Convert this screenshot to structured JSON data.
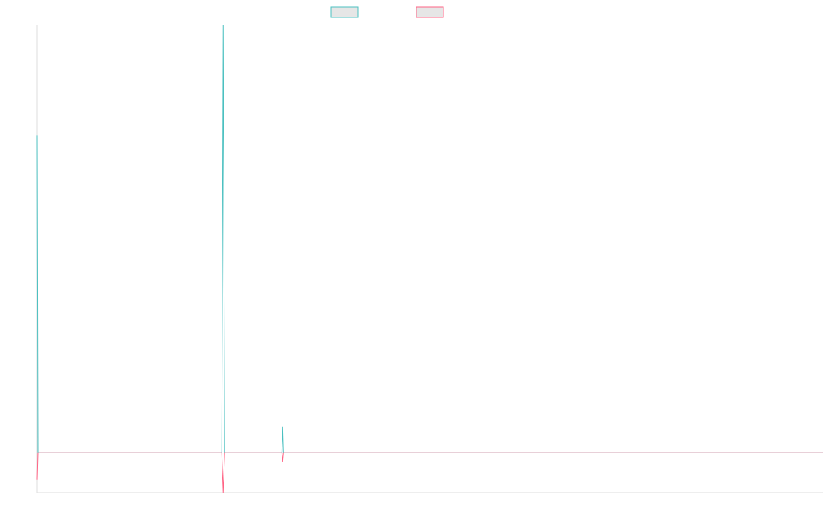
{
  "chart_data": {
    "type": "line",
    "title": "",
    "xlabel": "",
    "ylabel": "",
    "grid": false,
    "legend_position": "top-center",
    "x": [
      0,
      1,
      2,
      3,
      4,
      5,
      6,
      7,
      8,
      9,
      10,
      11,
      12,
      13,
      14,
      15,
      16,
      17,
      18,
      19,
      20,
      21,
      22,
      23,
      24,
      25,
      26,
      27,
      28,
      29,
      30,
      31,
      32,
      33,
      34,
      35,
      36,
      37,
      38,
      39,
      40,
      41,
      42,
      43,
      44,
      45,
      46,
      47,
      48,
      49,
      50,
      51,
      52,
      53,
      54,
      55,
      56,
      57,
      58,
      59,
      60,
      61,
      62,
      63,
      64,
      65,
      66,
      67,
      68,
      69,
      70,
      71,
      72,
      73,
      74,
      75,
      76,
      77,
      78,
      79,
      80,
      81,
      82,
      83,
      84,
      85,
      86,
      87,
      88,
      89,
      90,
      91,
      92,
      93,
      94,
      95,
      96,
      97,
      98,
      99,
      100,
      101,
      102,
      103,
      104,
      105,
      106,
      107,
      108,
      109,
      110,
      111,
      112,
      113,
      114,
      115,
      116,
      117,
      118,
      119,
      120,
      121,
      122,
      123,
      124,
      125,
      126,
      127,
      128,
      129,
      130,
      131,
      132,
      133,
      134,
      135,
      136,
      137,
      138,
      139,
      140,
      141,
      142,
      143,
      144,
      145,
      146,
      147,
      148,
      149,
      150,
      151,
      152,
      153,
      154,
      155,
      156,
      157,
      158,
      159,
      160,
      161,
      162,
      163,
      164,
      165,
      166,
      167,
      168,
      169,
      170,
      171,
      172,
      173,
      174,
      175,
      176,
      177,
      178,
      179,
      180,
      181,
      182,
      183,
      184,
      185,
      186,
      187,
      188,
      189,
      190,
      191,
      192,
      193,
      194,
      195,
      196,
      197,
      198,
      199,
      200,
      201,
      202,
      203,
      204,
      205,
      206,
      207,
      208,
      209,
      210,
      211,
      212,
      213,
      214,
      215,
      216,
      217,
      218,
      219,
      220,
      221,
      222,
      223,
      224,
      225,
      226,
      227,
      228,
      229,
      230,
      231,
      232,
      233,
      234,
      235,
      236,
      237,
      238,
      239,
      240,
      241,
      242,
      243,
      244,
      245,
      246,
      247,
      248,
      249,
      250,
      251,
      252,
      253,
      254,
      255,
      256,
      257,
      258,
      259,
      260,
      261,
      262,
      263,
      264,
      265,
      266,
      267,
      268,
      269,
      270,
      271,
      272,
      273,
      274,
      275,
      276,
      277,
      278,
      279,
      280,
      281,
      282,
      283,
      284,
      285,
      286,
      287,
      288,
      289,
      290,
      291,
      292,
      293,
      294,
      295,
      296,
      297,
      298,
      299,
      300,
      301,
      302,
      303,
      304,
      305,
      306,
      307,
      308,
      309,
      310,
      311,
      312,
      313,
      314,
      315,
      316,
      317,
      318,
      319,
      320,
      321,
      322,
      323,
      324,
      325,
      326,
      327,
      328,
      329,
      330,
      331,
      332,
      333,
      334,
      335,
      336,
      337,
      338,
      339,
      340,
      341,
      342,
      343,
      344,
      345,
      346,
      347,
      348,
      349,
      350,
      351,
      352,
      353,
      354,
      355,
      356,
      357,
      358,
      359,
      360,
      361,
      362,
      363,
      364,
      365,
      366,
      367,
      368,
      369,
      370,
      371,
      372,
      373,
      374,
      375,
      376,
      377,
      378,
      379,
      380,
      381,
      382,
      383,
      384,
      385,
      386,
      387,
      388,
      389,
      390,
      391,
      392,
      393,
      394,
      395,
      396,
      397,
      398,
      399,
      400,
      401,
      402,
      403,
      404,
      405,
      406,
      407,
      408,
      409,
      410,
      411,
      412,
      413,
      414,
      415,
      416,
      417,
      418,
      419,
      420,
      421,
      422,
      423,
      424,
      425,
      426,
      427,
      428,
      429,
      430,
      431,
      432,
      433,
      434,
      435,
      436,
      437,
      438,
      439,
      440,
      441,
      442,
      443,
      444,
      445,
      446,
      447,
      448,
      449,
      450,
      451,
      452,
      453,
      454,
      455,
      456,
      457,
      458,
      459,
      460,
      461,
      462,
      463,
      464,
      465,
      466,
      467,
      468,
      469,
      470,
      471,
      472,
      473,
      474,
      475,
      476,
      477,
      478,
      479,
      480,
      481,
      482,
      483,
      484,
      485,
      486,
      487,
      488,
      489,
      490,
      491,
      492,
      493,
      494,
      495,
      496,
      497,
      498,
      499,
      500,
      501,
      502,
      503,
      504,
      505,
      506,
      507,
      508,
      509,
      510,
      511,
      512,
      513,
      514,
      515,
      516,
      517,
      518,
      519,
      520,
      521,
      522,
      523,
      524,
      525,
      526,
      527,
      528,
      529,
      530,
      531,
      532,
      533,
      534,
      535,
      536,
      537,
      538,
      539,
      540,
      541,
      542,
      543,
      544,
      545,
      546,
      547,
      548,
      549,
      550,
      551,
      552,
      553,
      554,
      555,
      556,
      557,
      558,
      559,
      560,
      561,
      562,
      563,
      564,
      565,
      566,
      567,
      568,
      569,
      570,
      571,
      572,
      573,
      574,
      575,
      576,
      577,
      578,
      579,
      580,
      581,
      582,
      583,
      584,
      585,
      586,
      587,
      588,
      589,
      590,
      591,
      592,
      593,
      594,
      595,
      596,
      597,
      598,
      599,
      600,
      601,
      602,
      603,
      604,
      605,
      606,
      607,
      608,
      609,
      610,
      611,
      612,
      613,
      614,
      615,
      616,
      617,
      618,
      619,
      620,
      621,
      622,
      623,
      624,
      625,
      626,
      627,
      628,
      629,
      630,
      631,
      632,
      633,
      634,
      635,
      636,
      637,
      638,
      639,
      640,
      641,
      642,
      643,
      644,
      645,
      646,
      647,
      648,
      649,
      650,
      651,
      652,
      653,
      654,
      655,
      656,
      657,
      658,
      659,
      660,
      661,
      662,
      663,
      664,
      665,
      666,
      667,
      668,
      669,
      670,
      671,
      672,
      673,
      674,
      675,
      676,
      677,
      678,
      679,
      680,
      681,
      682,
      683,
      684,
      685,
      686,
      687,
      688,
      689,
      690,
      691,
      692,
      693,
      694,
      695,
      696,
      697,
      698,
      699,
      700,
      701,
      702,
      703,
      704,
      705,
      706,
      707,
      708,
      709,
      710,
      711,
      712,
      713,
      714,
      715,
      716,
      717,
      718,
      719,
      720,
      721,
      722,
      723,
      724,
      725,
      726,
      727,
      728,
      729,
      730,
      731,
      732,
      733,
      734,
      735,
      736,
      737,
      738,
      739,
      740,
      741,
      742,
      743,
      744,
      745,
      746,
      747,
      748,
      749,
      750,
      751,
      752,
      753,
      754,
      755,
      756,
      757,
      758,
      759,
      760,
      761,
      762,
      763,
      764,
      765,
      766,
      767,
      768,
      769,
      770,
      771,
      772,
      773,
      774,
      775,
      776,
      777,
      778,
      779,
      780,
      781,
      782,
      783,
      784,
      785,
      786,
      787,
      788,
      789,
      790,
      791,
      792,
      793,
      794,
      795,
      796,
      797,
      798,
      799,
      800,
      801,
      802,
      803,
      804,
      805,
      806,
      807,
      808,
      809,
      810,
      811,
      812,
      813,
      814,
      815,
      816,
      817,
      818,
      819,
      820,
      821,
      822,
      823,
      824,
      825,
      826,
      827,
      828,
      829,
      830,
      831,
      832,
      833,
      834,
      835,
      836,
      837,
      838,
      839,
      840,
      841,
      842,
      843,
      844,
      845,
      846,
      847,
      848,
      849,
      850,
      851,
      852,
      853,
      854,
      855,
      856,
      857,
      858,
      859,
      860,
      861,
      862,
      863,
      864,
      865,
      866,
      867,
      868,
      869,
      870,
      871,
      872,
      873,
      874,
      875,
      876,
      877,
      878,
      879,
      880,
      881,
      882,
      883,
      884,
      885,
      886,
      887,
      888,
      889,
      890,
      891,
      892,
      893,
      894,
      895,
      896,
      897,
      898,
      899,
      900,
      901,
      902,
      903,
      904,
      905,
      906,
      907,
      908,
      909,
      910,
      911,
      912,
      913,
      914,
      915,
      916,
      917,
      918,
      919,
      920,
      921,
      922,
      923,
      924,
      925,
      926,
      927,
      928,
      929,
      930,
      931,
      932,
      933,
      934,
      935,
      936,
      937,
      938,
      939,
      940,
      941,
      942,
      943,
      944,
      945,
      946,
      947,
      948,
      949,
      950,
      951,
      952,
      953,
      954,
      955,
      956,
      957,
      958,
      959,
      960,
      961,
      962,
      963,
      964,
      965,
      966,
      967,
      968,
      969,
      970,
      971,
      972,
      973,
      974,
      975,
      976,
      977,
      978,
      979,
      980,
      981,
      982,
      983,
      984,
      985,
      986,
      987,
      988,
      989,
      990,
      991,
      992,
      993,
      994,
      995,
      996,
      997,
      998,
      999,
      1000,
      1001,
      1002,
      1003,
      1004,
      1005,
      1006,
      1007,
      1008,
      1009,
      1010,
      1011,
      1012,
      1013,
      1014,
      1015,
      1016,
      1017,
      1018,
      1019,
      1020,
      1021,
      1022,
      1023,
      1024,
      1025,
      1026,
      1027,
      1028,
      1029,
      1030,
      1031,
      1032,
      1033,
      1034,
      1035,
      1036,
      1037,
      1038,
      1039,
      1040,
      1041,
      1042,
      1043,
      1044,
      1045,
      1046,
      1047,
      1048,
      1049,
      1050,
      1051,
      1052,
      1053,
      1054,
      1055,
      1056,
      1057,
      1058,
      1059,
      1060,
      1061,
      1062,
      1063,
      1064,
      1065,
      1066,
      1067,
      1068,
      1069,
      1070,
      1071,
      1072,
      1073,
      1074,
      1075,
      1076,
      1077,
      1078,
      1079,
      1080,
      1081,
      1082,
      1083,
      1084,
      1085,
      1086,
      1087,
      1088,
      1089,
      1090,
      1091,
      1092,
      1093,
      1094,
      1095,
      1096,
      1097,
      1098,
      1099,
      1100,
      1101,
      1102,
      1103,
      1104,
      1105,
      1106,
      1107,
      1108,
      1109,
      1110,
      1111,
      1112,
      1113,
      1114,
      1115,
      1116,
      1117,
      1118,
      1119,
      1120,
      1121,
      1122,
      1123,
      1124,
      1125,
      1126,
      1127,
      1128,
      1129,
      1130,
      1131,
      1132,
      1133,
      1134,
      1135,
      1136,
      1137,
      1138,
      1139,
      1140
    ],
    "series": [
      {
        "color": "#4bc0c0",
        "sparse": true,
        "baseline": 0,
        "points": [
          [
            0,
            72
          ],
          [
            1,
            0
          ],
          [
            268,
            0
          ],
          [
            270,
            97
          ],
          [
            272,
            0
          ],
          [
            355,
            0
          ],
          [
            356,
            6
          ],
          [
            357,
            0
          ]
        ]
      },
      {
        "color": "#ff6384",
        "sparse": true,
        "baseline": 0,
        "points": [
          [
            0,
            -6
          ],
          [
            1,
            0
          ],
          [
            268,
            0
          ],
          [
            270,
            -9
          ],
          [
            272,
            0
          ],
          [
            355,
            0
          ],
          [
            356,
            -2
          ],
          [
            357,
            0
          ]
        ]
      }
    ],
    "xlim": [
      0,
      1140
    ],
    "ylim": [
      -9,
      97
    ]
  },
  "legend": {
    "items": [
      {
        "label": "",
        "color": "#4bc0c0"
      },
      {
        "label": "",
        "color": "#ff6384"
      }
    ]
  }
}
